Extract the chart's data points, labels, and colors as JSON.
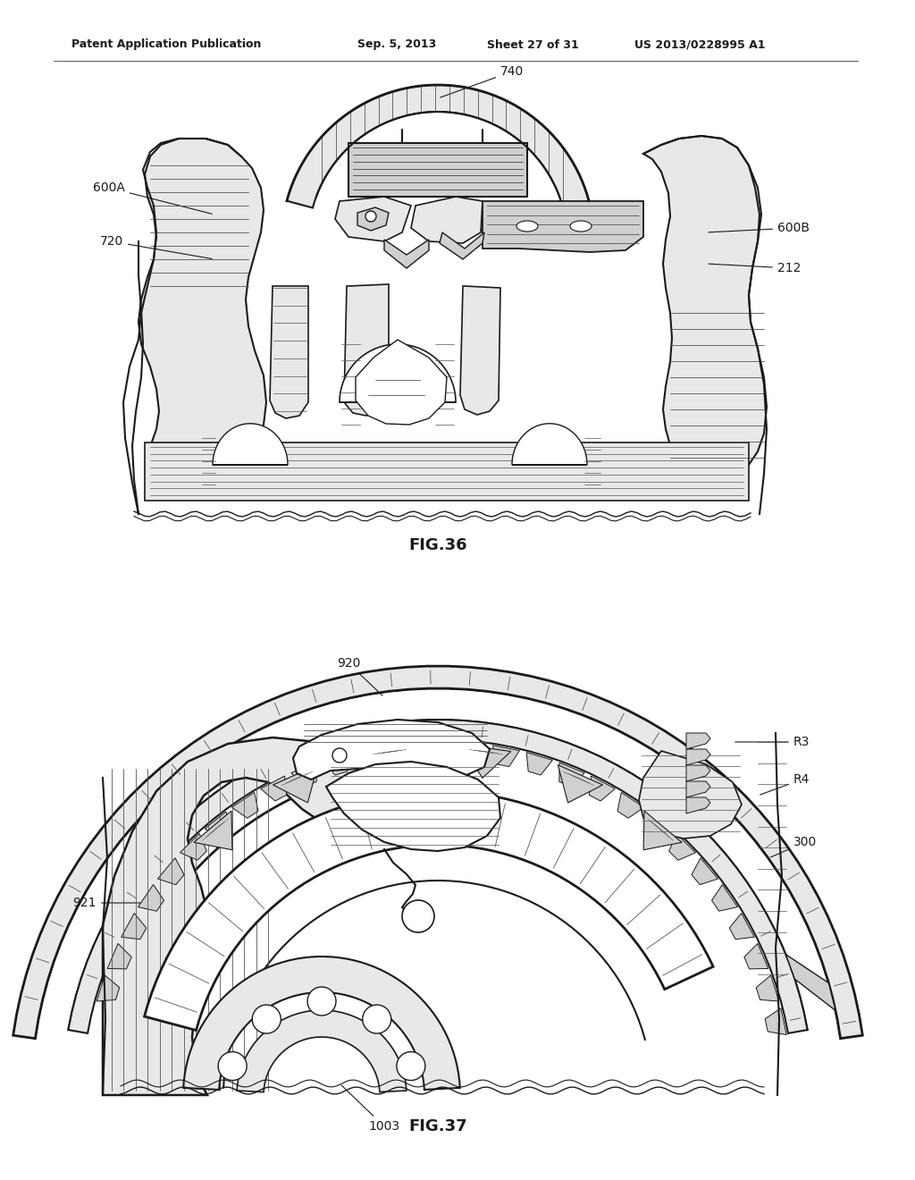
{
  "bg_color": "#ffffff",
  "header_left": "Patent Application Publication",
  "header_mid1": "Sep. 5, 2013",
  "header_mid2": "Sheet 27 of 31",
  "header_right": "US 2013/0228995 A1",
  "fig36_label": "FIG.36",
  "fig37_label": "FIG.37",
  "header_fontsize": 9,
  "ann_fontsize": 10,
  "fig_label_fontsize": 13,
  "line_color": "#1a1a1a",
  "fill_light": "#e8e8e8",
  "fill_white": "#ffffff",
  "fill_mid": "#d0d0d0",
  "fill_dark": "#b8b8b8",
  "hatch_color": "#555555"
}
